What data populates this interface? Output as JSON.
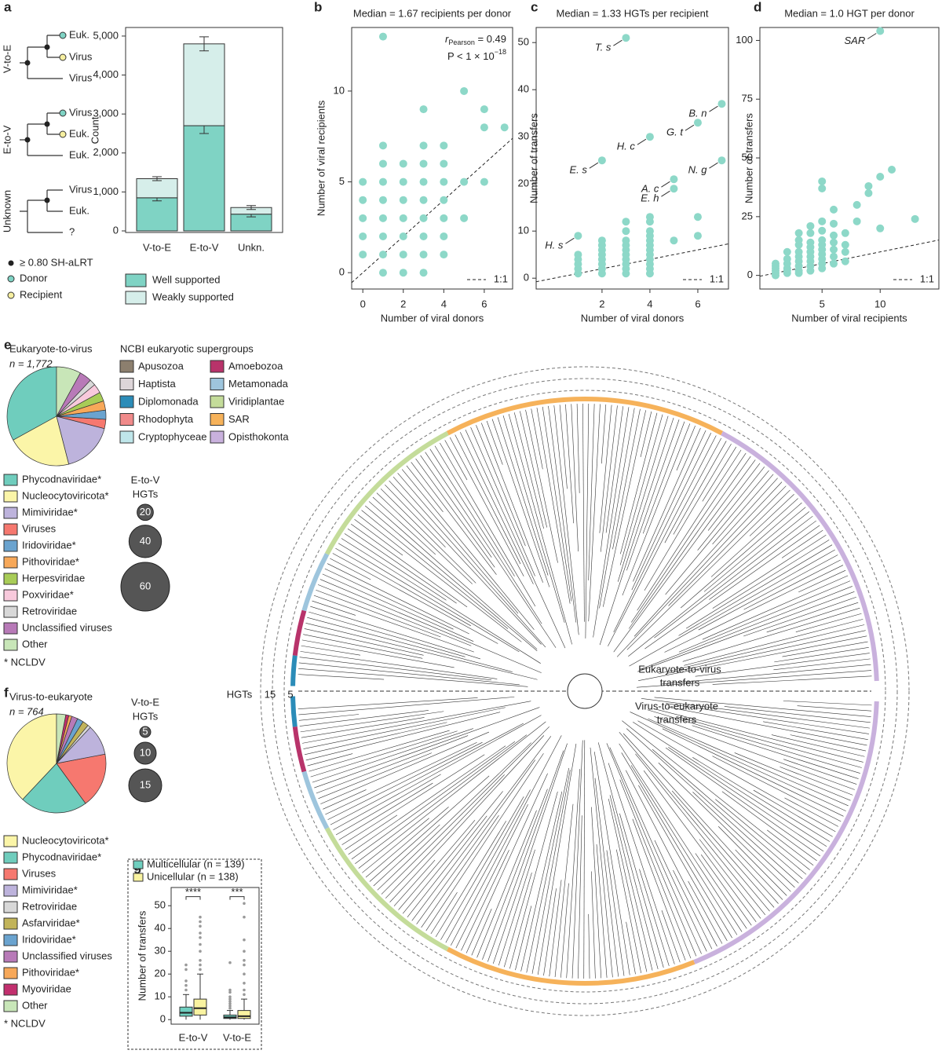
{
  "panel_letters": [
    "a",
    "b",
    "c",
    "d",
    "e",
    "f",
    "g"
  ],
  "panel_a_diagram": {
    "groups": [
      {
        "name": "V-to-E",
        "tips": [
          "Euk.",
          "Virus",
          "Virus"
        ]
      },
      {
        "name": "E-to-V",
        "tips": [
          "Virus",
          "Euk.",
          "Euk."
        ]
      },
      {
        "name": "Unknown",
        "tips": [
          "Virus",
          "Euk.",
          "?"
        ]
      }
    ],
    "legend": [
      "≥ 0.80 SH-aLRT",
      "Donor",
      "Recipient"
    ]
  },
  "supergroups": {
    "title": "NCBI eukaryotic supergroups",
    "items": [
      {
        "name": "Apusozoa",
        "color": "#8c7f6e"
      },
      {
        "name": "Amoebozoa",
        "color": "#b8336a"
      },
      {
        "name": "Haptista",
        "color": "#ddd5d8"
      },
      {
        "name": "Metamonada",
        "color": "#9ec5dd"
      },
      {
        "name": "Diplomonada",
        "color": "#2b8cb8"
      },
      {
        "name": "Viridiplantae",
        "color": "#c4dc9a"
      },
      {
        "name": "Rhodophyta",
        "color": "#f08a8a"
      },
      {
        "name": "SAR",
        "color": "#f6b25a"
      },
      {
        "name": "Cryptophyceae",
        "color": "#bfe6ea"
      },
      {
        "name": "Opisthokonta",
        "color": "#c9b1dd"
      }
    ]
  },
  "tree": {
    "hgt_scale": [
      "HGTs",
      "15",
      "5"
    ],
    "upper_label": [
      "Eukaryote-to-virus",
      "transfers"
    ],
    "lower_label": [
      "Virus-to-eukaryote",
      "transfers"
    ]
  },
  "size_legends": [
    {
      "title": [
        "E-to-V",
        "HGTs"
      ],
      "values": [
        20,
        40,
        60
      ]
    },
    {
      "title": [
        "V-to-E",
        "HGTs"
      ],
      "values": [
        5,
        10,
        15
      ]
    }
  ],
  "chart_data": [
    {
      "type": "bar",
      "ylabel": "Count",
      "categories": [
        "V-to-E",
        "E-to-V",
        "Unkn."
      ],
      "series": [
        {
          "name": "Well supported",
          "color": "#7fd3c4",
          "values": [
            850,
            2700,
            430
          ],
          "errors": [
            80,
            200,
            70
          ]
        },
        {
          "name": "Weakly supported",
          "color": "#d6eeea",
          "values": [
            490,
            2100,
            170
          ],
          "errors": [
            50,
            180,
            50
          ]
        }
      ],
      "ylim": [
        0,
        5200
      ],
      "yticks": [
        0,
        {
          "value": 1000,
          "label": "1,000"
        },
        {
          "value": 2000,
          "label": "2,000"
        },
        {
          "value": 3000,
          "label": "3,000"
        },
        {
          "value": 4000,
          "label": "4,000"
        },
        {
          "value": 5000,
          "label": "5,000"
        }
      ]
    },
    {
      "type": "scatter",
      "title": "Median = 1.67 recipients per donor",
      "xlabel": "Number of viral donors",
      "ylabel": "Number of viral recipients",
      "color": "#8dd8c8",
      "reference_line": "1:1",
      "stat_label": {
        "r": "r",
        "r_sub": "Pearson",
        "r_value": " = 0.49",
        "p": "P < 1 × 10",
        "p_exp": "−18"
      },
      "x": [
        0,
        0,
        0,
        0,
        0,
        1,
        1,
        1,
        1,
        1,
        1,
        1,
        1,
        1,
        2,
        2,
        2,
        2,
        2,
        2,
        2,
        3,
        3,
        3,
        3,
        3,
        3,
        3,
        3,
        3,
        4,
        4,
        4,
        4,
        4,
        4,
        4,
        5,
        5,
        5,
        6,
        6,
        6,
        7
      ],
      "values": [
        1,
        2,
        3,
        4,
        5,
        0,
        1,
        2,
        3,
        4,
        5,
        6,
        7,
        13,
        0,
        1,
        2,
        3,
        4,
        5,
        6,
        0,
        1,
        2,
        3,
        4,
        5,
        6,
        7,
        9,
        1,
        2,
        3,
        4,
        5,
        6,
        7,
        3,
        5,
        10,
        5,
        8,
        9,
        8
      ],
      "xlim": [
        -0.55,
        7.4
      ],
      "ylim": [
        -0.9,
        13.5
      ],
      "xticks": [
        0,
        2,
        4,
        6
      ],
      "yticks": [
        0,
        5,
        10
      ]
    },
    {
      "type": "scatter",
      "title": "Median = 1.33 HGTs per recipient",
      "xlabel": "Number of viral donors",
      "ylabel": "Number of transfers",
      "color": "#8dd8c8",
      "reference_line": "1:1",
      "x": [
        1,
        1,
        1,
        1,
        1,
        1,
        2,
        2,
        2,
        2,
        2,
        2,
        2,
        2,
        2,
        3,
        3,
        3,
        3,
        3,
        3,
        3,
        3,
        3,
        3,
        3,
        4,
        4,
        4,
        4,
        4,
        4,
        4,
        4,
        4,
        4,
        4,
        4,
        4,
        5,
        5,
        5,
        6,
        6,
        6,
        7,
        7
      ],
      "values": [
        1,
        2,
        3,
        4,
        5,
        9,
        1,
        2,
        3,
        4,
        5,
        6,
        7,
        8,
        25,
        1,
        2,
        3,
        4,
        5,
        6,
        7,
        8,
        10,
        12,
        51,
        1,
        2,
        3,
        4,
        5,
        6,
        7,
        8,
        9,
        10,
        12,
        13,
        30,
        8,
        19,
        21,
        9,
        13,
        33,
        25,
        37
      ],
      "point_labels": [
        null,
        null,
        null,
        null,
        null,
        "H. s",
        null,
        null,
        null,
        null,
        null,
        null,
        null,
        null,
        "E. s",
        null,
        null,
        null,
        null,
        null,
        null,
        null,
        null,
        null,
        null,
        "T. s",
        null,
        null,
        null,
        null,
        null,
        null,
        null,
        null,
        null,
        null,
        null,
        null,
        "H. c",
        null,
        "E. h",
        "A. c",
        null,
        null,
        "G. t",
        "N. g",
        "B. n"
      ],
      "xlim": [
        -0.75,
        7.28
      ],
      "ylim": [
        -2.3,
        53.2
      ],
      "xticks": [
        2,
        4,
        6
      ],
      "yticks": [
        0,
        10,
        20,
        30,
        40,
        50
      ]
    },
    {
      "type": "scatter",
      "title": "Median = 1.0 HGT per donor",
      "xlabel": "Number of viral recipients",
      "ylabel": "Number of transfers",
      "color": "#8dd8c8",
      "reference_line": "1:1",
      "x": [
        1,
        1,
        1,
        1,
        1,
        1,
        2,
        2,
        2,
        2,
        2,
        2,
        3,
        3,
        3,
        3,
        3,
        3,
        3,
        3,
        3,
        4,
        4,
        4,
        4,
        4,
        4,
        4,
        4,
        4,
        5,
        5,
        5,
        5,
        5,
        5,
        5,
        5,
        5,
        5,
        5,
        6,
        6,
        6,
        6,
        6,
        6,
        6,
        7,
        7,
        7,
        7,
        8,
        8,
        9,
        9,
        10,
        10,
        10,
        11,
        13
      ],
      "values": [
        0,
        1,
        2,
        3,
        4,
        5,
        1,
        2,
        3,
        5,
        7,
        10,
        1,
        2,
        4,
        6,
        8,
        10,
        13,
        15,
        18,
        2,
        4,
        6,
        8,
        10,
        12,
        14,
        18,
        21,
        3,
        5,
        7,
        9,
        11,
        13,
        15,
        19,
        23,
        37,
        40,
        5,
        8,
        11,
        14,
        17,
        22,
        28,
        6,
        10,
        13,
        18,
        23,
        30,
        35,
        38,
        20,
        42,
        104,
        45,
        24
      ],
      "point_labels": [
        null,
        null,
        null,
        null,
        null,
        null,
        null,
        null,
        null,
        null,
        null,
        null,
        null,
        null,
        null,
        null,
        null,
        null,
        null,
        null,
        null,
        null,
        null,
        null,
        null,
        null,
        null,
        null,
        null,
        null,
        null,
        null,
        null,
        null,
        null,
        null,
        null,
        null,
        null,
        null,
        null,
        null,
        null,
        null,
        null,
        null,
        null,
        null,
        null,
        null,
        null,
        null,
        null,
        null,
        null,
        null,
        null,
        null,
        "SAR",
        null,
        null
      ],
      "xlim": [
        -0.35,
        15.05
      ],
      "ylim": [
        -5.8,
        105.5
      ],
      "xticks": [
        5,
        10
      ],
      "yticks": [
        0,
        25,
        50,
        75,
        100
      ]
    },
    {
      "type": "pie",
      "title": "Eukaryote-to-virus",
      "subtitle": "n = 1,772",
      "note": "* NCLDV",
      "labels": [
        "Phycodnaviridae*",
        "Nucleocytoviricota*",
        "Mimiviridae*",
        "Viruses",
        "Iridoviridae*",
        "Pithoviridae*",
        "Herpesviridae",
        "Poxviridae*",
        "Retroviridae",
        "Unclassified viruses",
        "Other"
      ],
      "values": [
        33,
        21,
        17,
        3,
        3,
        3,
        3,
        3,
        2,
        4,
        8
      ],
      "colors": [
        "#6fcdbd",
        "#fbf5a8",
        "#bdb3dc",
        "#f6786f",
        "#6aa3cf",
        "#f7a859",
        "#a8cc57",
        "#f8c9dc",
        "#d8d8d8",
        "#b87ab8",
        "#c8e6b8"
      ]
    },
    {
      "type": "pie",
      "title": "Virus-to-eukaryote",
      "subtitle": "n = 764",
      "note": "* NCLDV",
      "labels": [
        "Nucleocytoviricota*",
        "Phycodnaviridae*",
        "Viruses",
        "Mimiviridae*",
        "Retroviridae",
        "Asfarviridae*",
        "Iridoviridae*",
        "Unclassified viruses",
        "Pithoviridae*",
        "Myoviridae",
        "Other"
      ],
      "values": [
        38,
        22,
        18,
        10,
        1,
        2,
        2,
        2,
        1,
        1,
        3
      ],
      "colors": [
        "#fbf5a8",
        "#6fcdbd",
        "#f6786f",
        "#bdb3dc",
        "#d8d8d8",
        "#c2b45a",
        "#6aa3cf",
        "#b87ab8",
        "#f7a859",
        "#c22f6e",
        "#c8e6b8"
      ]
    },
    {
      "type": "box",
      "ylabel": "Number of transfers",
      "categories": [
        "E-to-V",
        "V-to-E"
      ],
      "significance": [
        "****",
        "***"
      ],
      "series": [
        {
          "name": "Multicellular (n = 139)",
          "color": "#6fcfbf",
          "min": [
            0,
            0
          ],
          "q1": [
            1.5,
            0.5
          ],
          "median": [
            3,
            1
          ],
          "q3": [
            5.5,
            2
          ],
          "max": [
            11,
            4
          ],
          "outliers": [
            [
              13,
              15,
              17,
              22,
              24
            ],
            [
              5,
              6,
              7,
              8,
              9,
              10,
              12,
              13,
              25
            ]
          ]
        },
        {
          "name": "Unicellular (n = 138)",
          "color": "#f9f3a0",
          "min": [
            0,
            0
          ],
          "q1": [
            2,
            0.5
          ],
          "median": [
            5,
            1.5
          ],
          "q3": [
            9,
            4
          ],
          "max": [
            20,
            9
          ],
          "outliers": [
            [
              22,
              24,
              26,
              30,
              33,
              36,
              38,
              41,
              43,
              45
            ],
            [
              11,
              13,
              16,
              20,
              24,
              26,
              30,
              35,
              45,
              51
            ]
          ]
        }
      ],
      "ylim": [
        -2,
        58
      ],
      "yticks": [
        0,
        10,
        20,
        30,
        40,
        50
      ]
    }
  ]
}
